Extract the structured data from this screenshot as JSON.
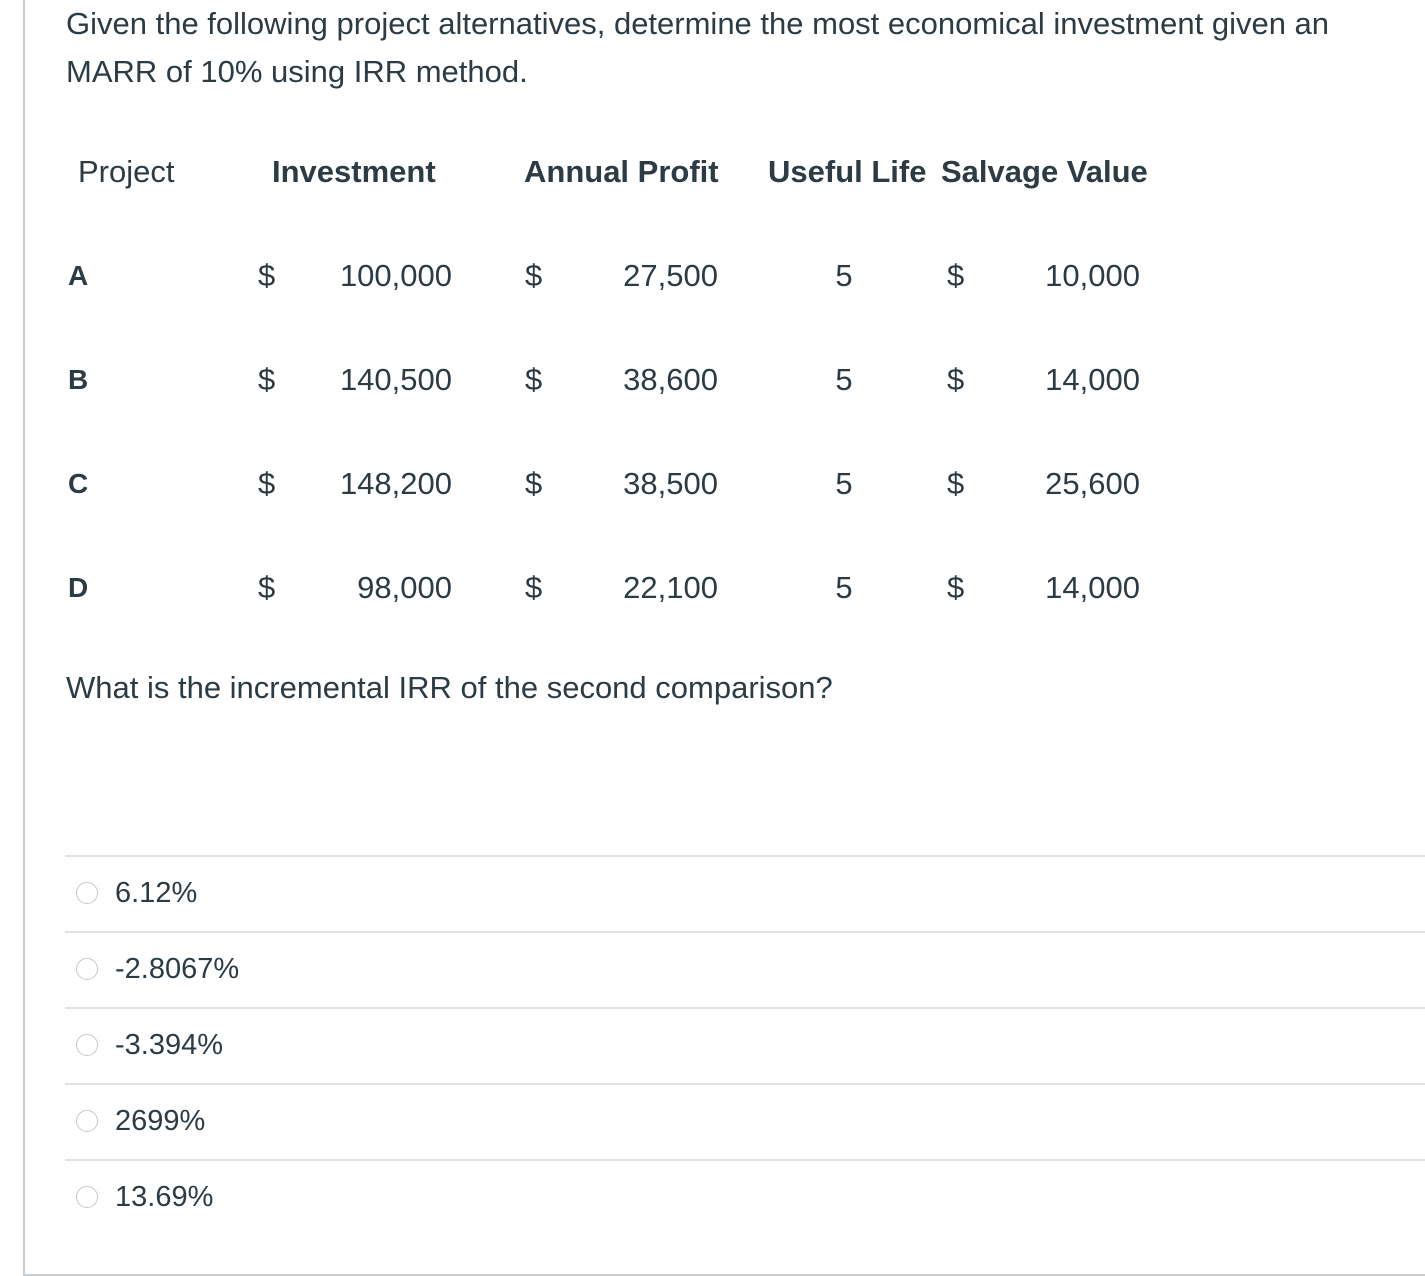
{
  "question": {
    "prompt": "Given the following project alternatives, determine the most economical investment given an MARR of 10% using IRR method.",
    "followup": "What is the incremental IRR of the second comparison?"
  },
  "table": {
    "headers": {
      "project": "Project",
      "investment": "Investment",
      "annual_profit": "Annual Profit",
      "useful_life": "Useful Life",
      "salvage_value": "Salvage Value"
    },
    "currency_symbol": "$",
    "rows": [
      {
        "project": "A",
        "investment": "100,000",
        "annual_profit": "27,500",
        "useful_life": "5",
        "salvage_value": "10,000"
      },
      {
        "project": "B",
        "investment": "140,500",
        "annual_profit": "38,600",
        "useful_life": "5",
        "salvage_value": "14,000"
      },
      {
        "project": "C",
        "investment": "148,200",
        "annual_profit": "38,500",
        "useful_life": "5",
        "salvage_value": "25,600"
      },
      {
        "project": "D",
        "investment": "98,000",
        "annual_profit": "22,100",
        "useful_life": "5",
        "salvage_value": "14,000"
      }
    ]
  },
  "answers": [
    {
      "label": "6.12%"
    },
    {
      "label": "-2.8067%"
    },
    {
      "label": "-3.394%"
    },
    {
      "label": "2699%"
    },
    {
      "label": "13.69%"
    }
  ]
}
